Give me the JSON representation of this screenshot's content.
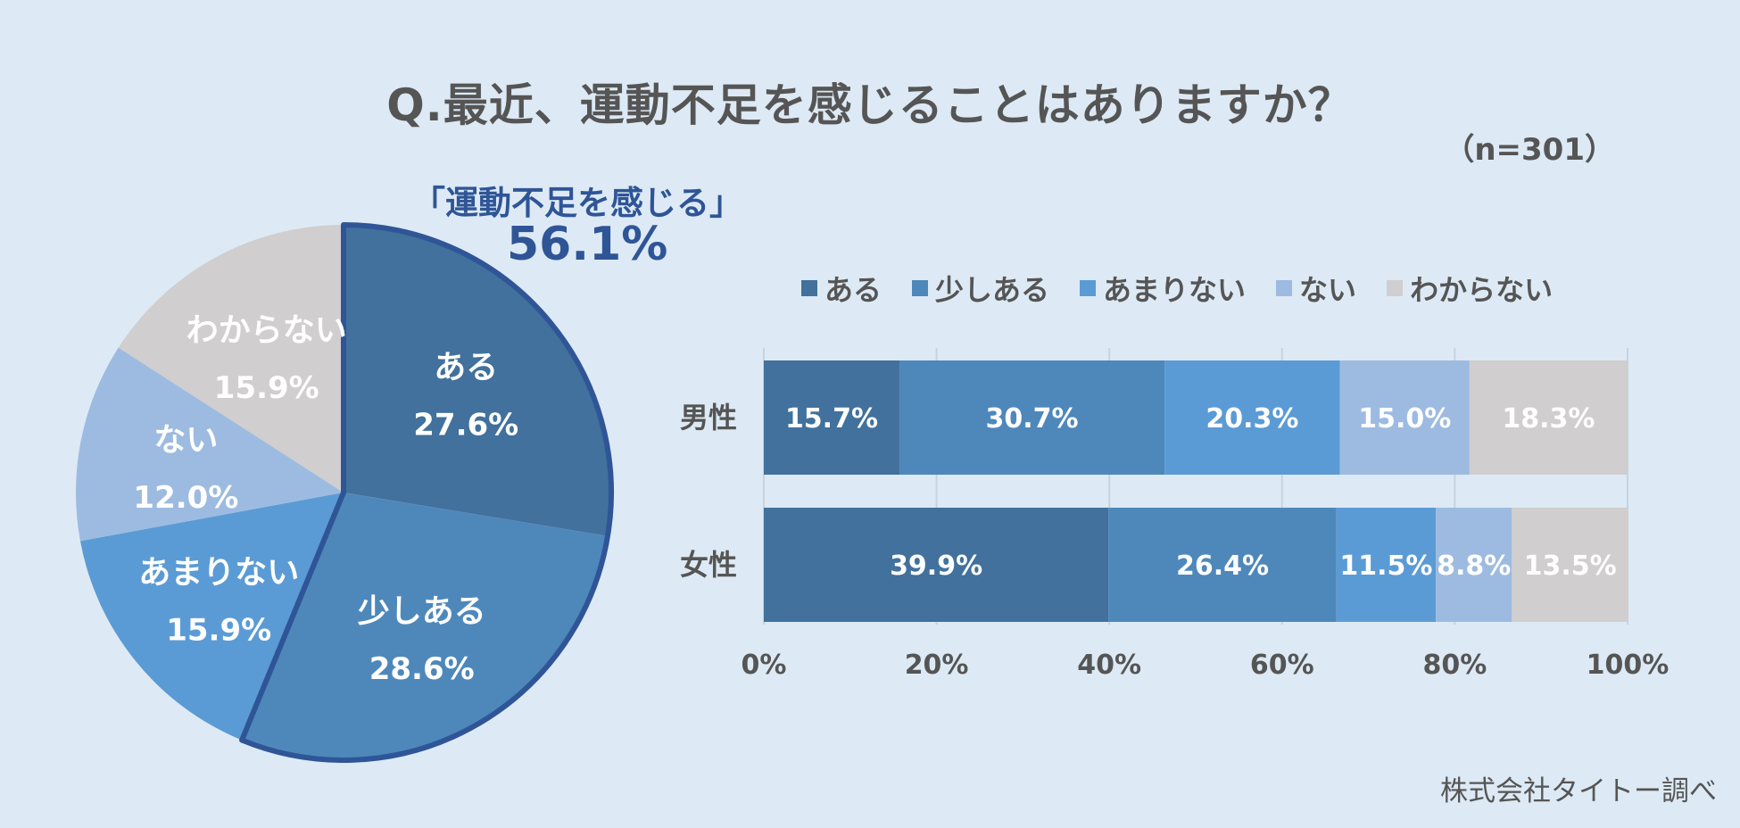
{
  "title": "Q.最近、運動不足を感じることはありますか？",
  "sample_size": "（n=301）",
  "highlight": {
    "label": "「運動不足を感じる」",
    "value": "56.1%"
  },
  "credit": "株式会社タイトー調べ",
  "colors": {
    "background": "#ddeaf5",
    "aru": "#41719c",
    "sukoshi_aru": "#4e88bb",
    "amari_nai": "#5b9bd5",
    "nai": "#9dbbe0",
    "wakaranai": "#d0cece",
    "highlight_outline": "#2f5597"
  },
  "legend": [
    {
      "label": "ある",
      "color": "#41719c"
    },
    {
      "label": "少しある",
      "color": "#4e88bb"
    },
    {
      "label": "あまりない",
      "color": "#5b9bd5"
    },
    {
      "label": "ない",
      "color": "#9dbbe0"
    },
    {
      "label": "わからない",
      "color": "#d0cece"
    }
  ],
  "chart_data": [
    {
      "type": "pie",
      "slices": [
        {
          "label": "ある",
          "value": 27.6,
          "display": "27.6%"
        },
        {
          "label": "少しある",
          "value": 28.6,
          "display": "28.6%"
        },
        {
          "label": "あまりない",
          "value": 15.9,
          "display": "15.9%"
        },
        {
          "label": "ない",
          "value": 12.0,
          "display": "12.0%"
        },
        {
          "label": "わからない",
          "value": 15.9,
          "display": "15.9%"
        }
      ],
      "highlighted_group": [
        "ある",
        "少しある"
      ],
      "highlighted_total": "56.1%"
    },
    {
      "type": "bar",
      "orientation": "horizontal",
      "stacked": true,
      "categories": [
        "男性",
        "女性"
      ],
      "series": [
        {
          "name": "ある",
          "values": [
            15.7,
            39.9
          ],
          "display": [
            "15.7%",
            "39.9%"
          ]
        },
        {
          "name": "少しある",
          "values": [
            30.7,
            26.4
          ],
          "display": [
            "30.7%",
            "26.4%"
          ]
        },
        {
          "name": "あまりない",
          "values": [
            20.3,
            11.5
          ],
          "display": [
            "20.3%",
            "11.5%"
          ]
        },
        {
          "name": "ない",
          "values": [
            15.0,
            8.8
          ],
          "display": [
            "15.0%",
            "8.8%"
          ]
        },
        {
          "name": "わからない",
          "values": [
            18.3,
            13.5
          ],
          "display": [
            "18.3%",
            "13.5%"
          ]
        }
      ],
      "xlim": [
        0,
        100
      ],
      "x_ticks": [
        "0%",
        "20%",
        "40%",
        "60%",
        "80%",
        "100%"
      ],
      "grid": true,
      "legend_position": "top"
    }
  ]
}
